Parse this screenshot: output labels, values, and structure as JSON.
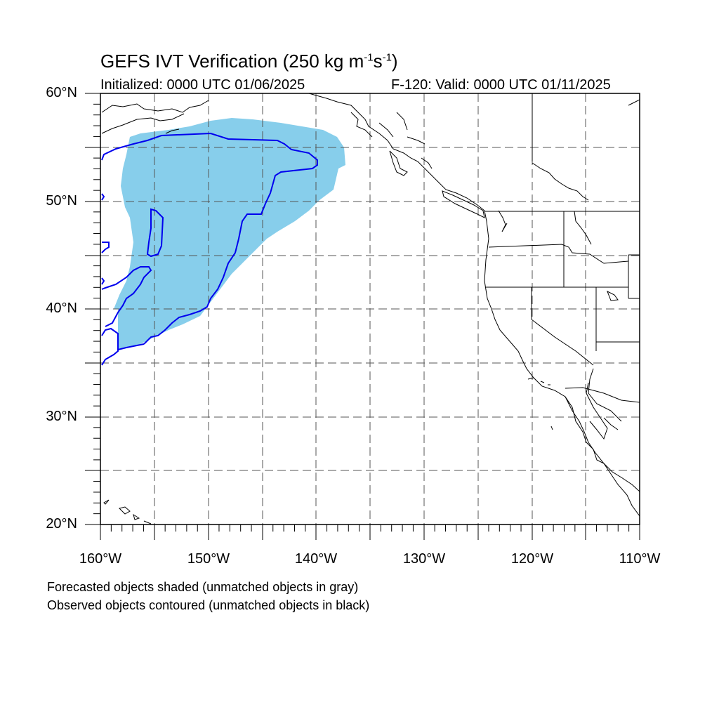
{
  "title": {
    "main": "GEFS IVT Verification (250 kg m",
    "sup1": "-1",
    "mid": "s",
    "sup2": "-1",
    "end": ")"
  },
  "initialized": "Initialized: 0000 UTC 01/06/2025",
  "valid": "F-120: Valid: 0000 UTC 01/11/2025",
  "lat_labels": [
    "60°N",
    "50°N",
    "40°N",
    "30°N",
    "20°N"
  ],
  "lon_labels": [
    "160°W",
    "150°W",
    "140°W",
    "130°W",
    "120°W",
    "110°W"
  ],
  "notes": [
    "Forecasted objects shaded (unmatched objects in gray)",
    "Observed objects contoured (unmatched objects in black)"
  ],
  "colors": {
    "forecast_fill": "#87ceeb",
    "observed_contour": "#0000ee",
    "coastline": "#000000",
    "grid": "#555555"
  },
  "map_extent": {
    "lon_min": -160,
    "lon_max": -110,
    "lat_min": 20,
    "lat_max": 60
  }
}
